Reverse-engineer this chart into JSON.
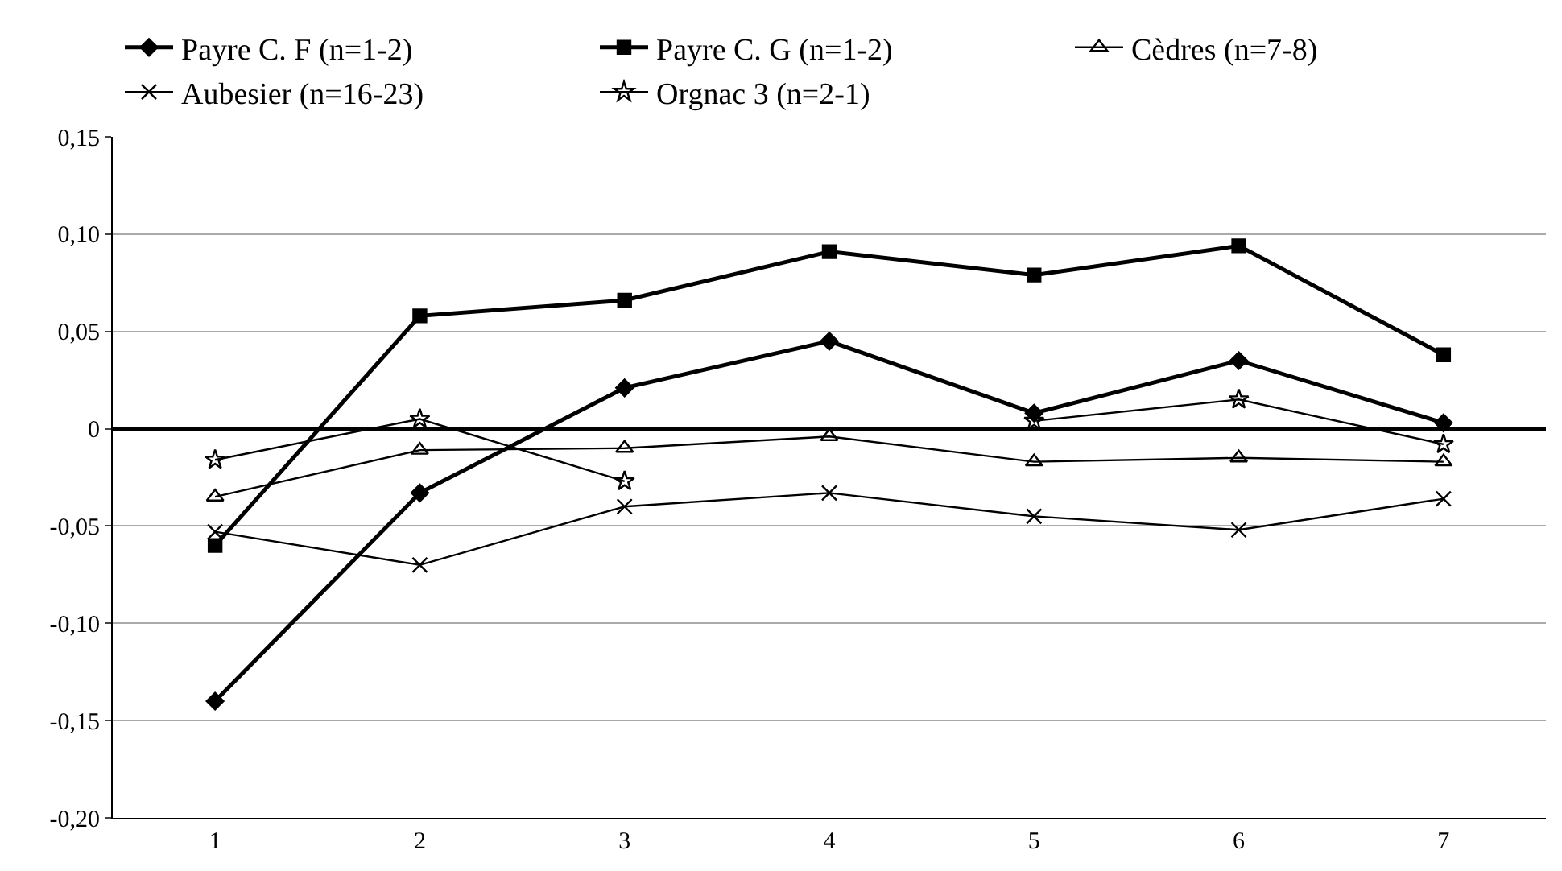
{
  "chart_data": {
    "type": "line",
    "categories": [
      "1",
      "2",
      "3",
      "4",
      "5",
      "6",
      "7"
    ],
    "series": [
      {
        "name": "Payre C. F (n=1-2)",
        "color": "#000000",
        "marker": "diamond",
        "values": [
          -0.14,
          -0.033,
          0.021,
          0.045,
          0.008,
          0.035,
          0.003
        ]
      },
      {
        "name": "Payre C. G (n=1-2)",
        "color": "#000000",
        "marker": "square",
        "values": [
          -0.06,
          0.058,
          0.066,
          0.091,
          0.079,
          0.094,
          0.038
        ]
      },
      {
        "name": "Cèdres (n=7-8)",
        "color": "#000000",
        "marker": "triangle",
        "values": [
          -0.035,
          -0.011,
          -0.01,
          -0.004,
          -0.017,
          -0.015,
          -0.017
        ]
      },
      {
        "name": "Aubesier (n=16-23)",
        "color": "#000000",
        "marker": "cross",
        "values": [
          -0.053,
          -0.07,
          -0.04,
          -0.033,
          -0.045,
          -0.052,
          -0.036
        ]
      },
      {
        "name": "Orgnac 3 (n=2-1)",
        "color": "#000000",
        "marker": "star",
        "values": [
          -0.016,
          0.005,
          -0.027,
          null,
          0.004,
          0.015,
          -0.008
        ]
      }
    ],
    "ylim": [
      -0.2,
      0.15
    ],
    "yticks": [
      {
        "value": -0.2,
        "label": "-0,20"
      },
      {
        "value": -0.15,
        "label": "-0,15"
      },
      {
        "value": -0.1,
        "label": "-0,10"
      },
      {
        "value": -0.05,
        "label": "-0,05"
      },
      0,
      {
        "value": 0.05,
        "label": "0,05"
      },
      {
        "value": 0.1,
        "label": "0,10"
      },
      {
        "value": 0.15,
        "label": "0,15"
      }
    ],
    "grid": "y",
    "legend": "top",
    "line_style": "solid"
  }
}
